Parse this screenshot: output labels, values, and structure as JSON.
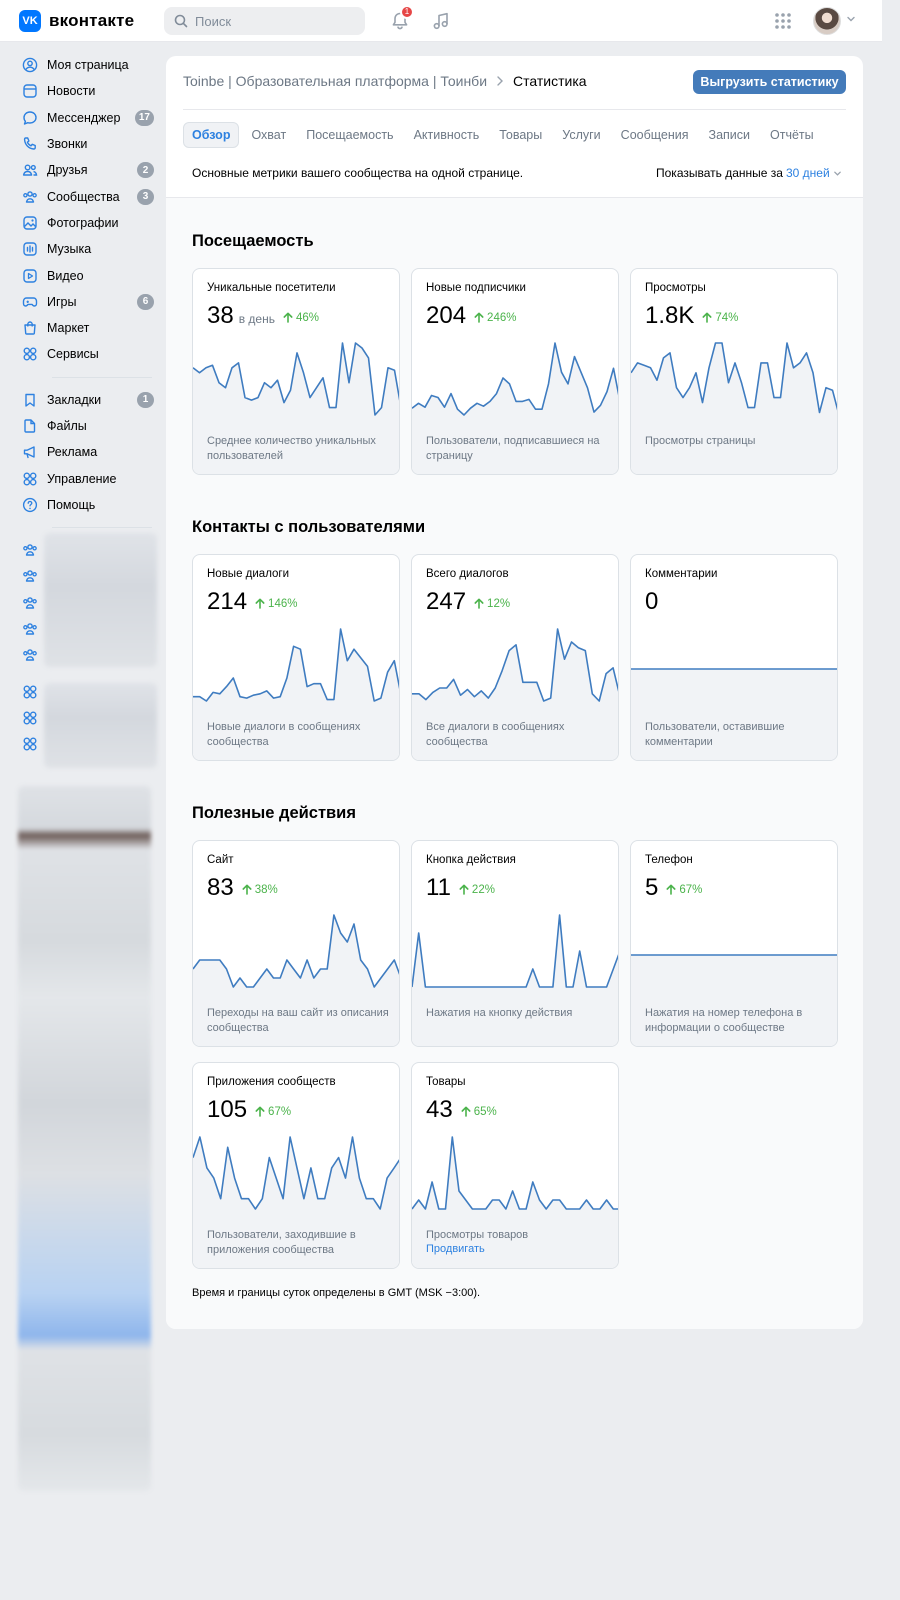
{
  "header": {
    "logo_text": "вконтакте",
    "logo_mark": "VK",
    "search_placeholder": "Поиск",
    "notifications_count": "1",
    "icons": [
      "bell-icon",
      "music-icon",
      "apps-grid-icon",
      "chevron-down-icon"
    ]
  },
  "sidebar": {
    "items": [
      {
        "label": "Моя страница",
        "icon": "user-circle-icon"
      },
      {
        "label": "Новости",
        "icon": "newspaper-icon"
      },
      {
        "label": "Мессенджер",
        "icon": "message-icon",
        "count": "17"
      },
      {
        "label": "Звонки",
        "icon": "phone-icon"
      },
      {
        "label": "Друзья",
        "icon": "friends-icon",
        "count": "2"
      },
      {
        "label": "Сообщества",
        "icon": "communities-icon",
        "count": "3"
      },
      {
        "label": "Фотографии",
        "icon": "photo-icon"
      },
      {
        "label": "Музыка",
        "icon": "music-icon"
      },
      {
        "label": "Видео",
        "icon": "video-icon"
      },
      {
        "label": "Игры",
        "icon": "gamepad-icon",
        "count": "6"
      },
      {
        "label": "Маркет",
        "icon": "bag-icon"
      },
      {
        "label": "Сервисы",
        "icon": "services-icon"
      }
    ],
    "items2": [
      {
        "label": "Закладки",
        "icon": "bookmark-icon",
        "count": "1"
      },
      {
        "label": "Файлы",
        "icon": "file-icon"
      },
      {
        "label": "Реклама",
        "icon": "megaphone-icon"
      },
      {
        "label": "Управление",
        "icon": "manage-icon"
      },
      {
        "label": "Помощь",
        "icon": "help-icon"
      }
    ]
  },
  "page": {
    "breadcrumb_link": "Toinbe | Образовательная платформа | Тоинби",
    "breadcrumb_current": "Статистика",
    "export_button": "Выгрузить статистику",
    "tabs": [
      "Обзор",
      "Охват",
      "Посещаемость",
      "Активность",
      "Товары",
      "Услуги",
      "Сообщения",
      "Записи",
      "Отчёты"
    ],
    "active_tab": "Обзор",
    "subtitle": "Основные метрики вашего сообщества на одной странице.",
    "period_label": "Показывать данные за",
    "period_value": "30 дней",
    "footnote": "Время и границы суток определены в GMT (MSK −3:00)."
  },
  "sections": [
    {
      "title": "Посещаемость",
      "cards": [
        {
          "title": "Уникальные посетители",
          "value": "38",
          "unit": "в день",
          "delta": "46%",
          "desc": "Среднее количество уникальных пользователей",
          "series": [
            18,
            16,
            18,
            19,
            12,
            10,
            18,
            20,
            6,
            5,
            6,
            12,
            10,
            13,
            4,
            9,
            24,
            16,
            6,
            10,
            14,
            2,
            2,
            28,
            12,
            28,
            26,
            22,
            -1,
            2,
            18,
            17,
            2
          ]
        },
        {
          "title": "Новые подписчики",
          "value": "204",
          "unit": "",
          "delta": "246%",
          "desc": "Пользователи, подписавшиеся на страницу",
          "series": [
            3,
            8,
            4,
            16,
            14,
            4,
            18,
            2,
            -4,
            3,
            8,
            5,
            10,
            18,
            34,
            28,
            10,
            10,
            12,
            2,
            2,
            28,
            70,
            40,
            28,
            56,
            40,
            24,
            -1,
            6,
            20,
            44,
            10
          ]
        },
        {
          "title": "Просмотры",
          "value": "1.8K",
          "unit": "",
          "delta": "74%",
          "desc": "Просмотры страницы",
          "series": [
            18,
            22,
            21,
            20,
            15,
            24,
            26,
            12,
            8,
            12,
            18,
            6,
            20,
            30,
            30,
            14,
            22,
            14,
            4,
            4,
            22,
            22,
            8,
            8,
            30,
            20,
            22,
            26,
            18,
            2,
            12,
            11,
            1
          ]
        }
      ]
    },
    {
      "title": "Контакты с пользователями",
      "cards": [
        {
          "title": "Новые диалоги",
          "value": "214",
          "unit": "",
          "delta": "146%",
          "desc": "Новые диалоги в сообщениях сообщества",
          "series": [
            3,
            3,
            0,
            6,
            5,
            10,
            16,
            3,
            2,
            4,
            5,
            7,
            2,
            3,
            16,
            38,
            36,
            10,
            12,
            12,
            1,
            1,
            50,
            28,
            36,
            30,
            24,
            0,
            2,
            20,
            28,
            4
          ]
        },
        {
          "title": "Всего диалогов",
          "value": "247",
          "unit": "",
          "delta": "12%",
          "desc": "Все диалоги в сообщениях сообщества",
          "series": [
            4,
            4,
            0,
            5,
            8,
            8,
            14,
            3,
            7,
            2,
            6,
            1,
            8,
            20,
            34,
            38,
            12,
            12,
            12,
            -1,
            1,
            49,
            28,
            40,
            36,
            34,
            4,
            -1,
            18,
            22,
            2
          ]
        },
        {
          "title": "Комментарии",
          "value": "0",
          "unit": "",
          "delta": "",
          "desc": "Пользователи, оставившие комментарии",
          "series": [
            0,
            0,
            0,
            0,
            0,
            0,
            0,
            0,
            0,
            0,
            0,
            0,
            0,
            0,
            0,
            0,
            0,
            0,
            0,
            0,
            0,
            0,
            0,
            0,
            0,
            0,
            0,
            0,
            0,
            0,
            0
          ]
        }
      ]
    },
    {
      "title": "Полезные действия",
      "cards": [
        {
          "title": "Сайт",
          "value": "83",
          "unit": "",
          "delta": "38%",
          "desc": "Переходы на ваш сайт из описания сообщества",
          "series": [
            2,
            3,
            3,
            3,
            3,
            2,
            0,
            1,
            0,
            0,
            1,
            2,
            1,
            1,
            3,
            2,
            1,
            3,
            1,
            2,
            2,
            8,
            6,
            5,
            7,
            3,
            2,
            0,
            1,
            2,
            3,
            1
          ]
        },
        {
          "title": "Кнопка действия",
          "value": "11",
          "unit": "",
          "delta": "22%",
          "desc": "Нажатия на кнопку действия",
          "series": [
            0,
            3,
            0,
            0,
            0,
            0,
            0,
            0,
            0,
            0,
            0,
            0,
            0,
            0,
            0,
            0,
            0,
            0,
            1,
            0,
            0,
            0,
            4,
            0,
            0,
            2,
            0,
            0,
            0,
            0,
            1,
            2
          ]
        },
        {
          "title": "Телефон",
          "value": "5",
          "unit": "",
          "delta": "67%",
          "desc": "Нажатия на номер телефона в информации о сообществе",
          "series": [
            0,
            0,
            0,
            0,
            0,
            0,
            0,
            0,
            0,
            0,
            0,
            0,
            0,
            0,
            0,
            0,
            0,
            0,
            0,
            0,
            0,
            0,
            0,
            0,
            0,
            0,
            0,
            0,
            0,
            0,
            0,
            0
          ]
        },
        {
          "title": "Приложения сообществ",
          "value": "105",
          "unit": "",
          "delta": "67%",
          "desc": "Пользователи, заходившие в приложения сообщества",
          "series": [
            6,
            8,
            5,
            4,
            2,
            7,
            4,
            2,
            2,
            1,
            2,
            6,
            4,
            2,
            8,
            5,
            2,
            5,
            2,
            2,
            5,
            6,
            4,
            8,
            4,
            2,
            2,
            1,
            4,
            5,
            6
          ]
        },
        {
          "title": "Товары",
          "value": "43",
          "unit": "",
          "delta": "65%",
          "desc": "Просмотры товаров",
          "link": "Продвигать",
          "series": [
            0,
            1,
            0,
            3,
            0,
            0,
            8,
            2,
            1,
            0,
            0,
            0,
            1,
            1,
            0,
            2,
            0,
            0,
            3,
            1,
            0,
            1,
            1,
            0,
            0,
            0,
            1,
            0,
            0,
            1,
            0,
            0
          ]
        }
      ]
    }
  ],
  "colors": {
    "accent": "#2d81e0",
    "button": "#447bba",
    "spark_line": "#3f7cc0",
    "spark_fill": "#f1f3f6",
    "positive": "#4bb34b",
    "badge": "#e64646"
  }
}
